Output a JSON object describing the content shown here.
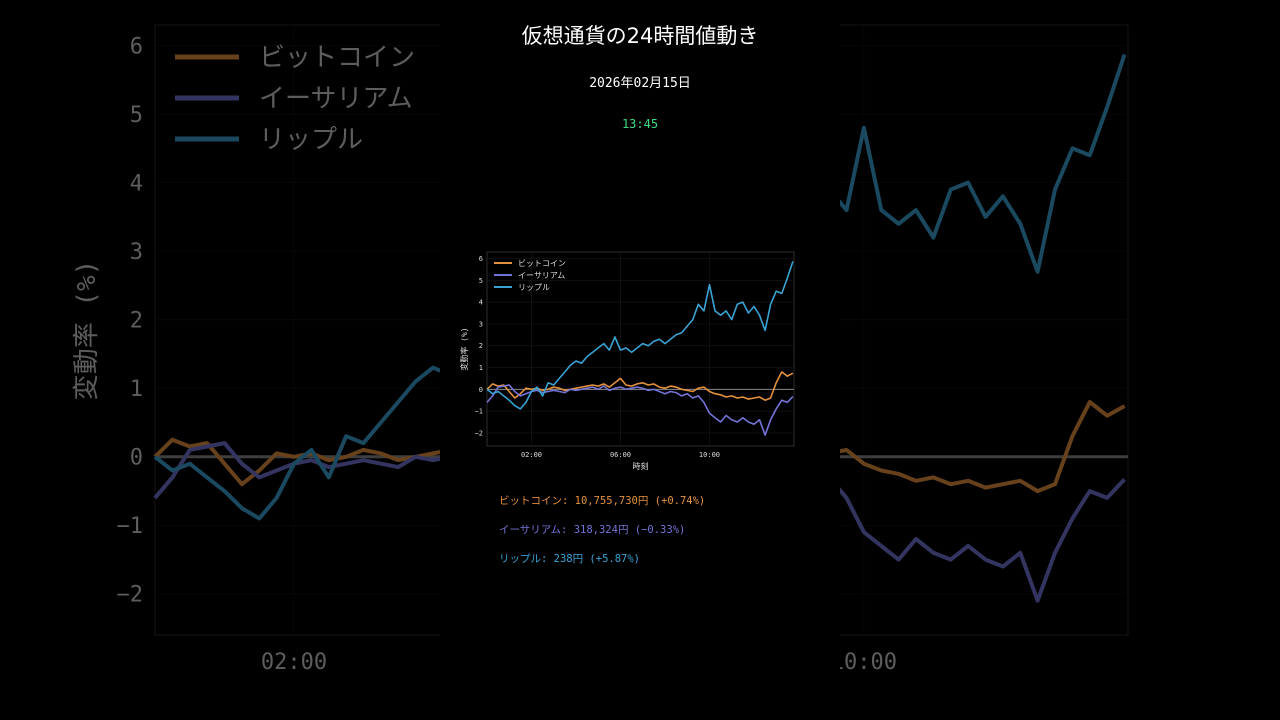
{
  "title": "仮想通貨の24時間値動き",
  "date": "2026年02月15日",
  "time": "13:45",
  "colors": {
    "background": "#000000",
    "time": "#3ddc84",
    "btc": "#e3913d",
    "eth": "#7474d8",
    "xrp": "#3aa3d4",
    "zero_line": "#8a8a8a"
  },
  "prices": [
    {
      "label": "ビットコイン: 10,755,730円 (+0.74%)",
      "color": "#e3913d"
    },
    {
      "label": "イーサリアム: 318,324円 (−0.33%)",
      "color": "#7474d8"
    },
    {
      "label": "リップル: 238円 (+5.87%)",
      "color": "#3aa3d4"
    }
  ],
  "chart_data": {
    "type": "line",
    "xlabel": "時刻",
    "ylabel": "変動率 (%)",
    "xlim": [
      0,
      13.8
    ],
    "ylim": [
      -2.6,
      6.3
    ],
    "x_ticks": [
      2,
      6,
      10
    ],
    "x_tick_labels": [
      "02:00",
      "06:00",
      "10:00"
    ],
    "y_ticks": [
      -2,
      -1,
      0,
      1,
      2,
      3,
      4,
      5,
      6
    ],
    "grid": true,
    "legend": "top-left",
    "x": [
      0,
      0.25,
      0.5,
      0.75,
      1,
      1.25,
      1.5,
      1.75,
      2,
      2.25,
      2.5,
      2.75,
      3,
      3.25,
      3.5,
      3.75,
      4,
      4.25,
      4.5,
      4.75,
      5,
      5.25,
      5.5,
      5.75,
      6,
      6.25,
      6.5,
      6.75,
      7,
      7.25,
      7.5,
      7.75,
      8,
      8.25,
      8.5,
      8.75,
      9,
      9.25,
      9.5,
      9.75,
      10,
      10.25,
      10.5,
      10.75,
      11,
      11.25,
      11.5,
      11.75,
      12,
      12.25,
      12.5,
      12.75,
      13,
      13.25,
      13.5,
      13.75
    ],
    "series": [
      {
        "name": "ビットコイン",
        "color": "#e3913d",
        "values": [
          0,
          0.25,
          0.15,
          0.2,
          -0.1,
          -0.4,
          -0.2,
          0.05,
          0,
          0.05,
          -0.05,
          0,
          0.1,
          0.05,
          -0.05,
          0,
          0.05,
          0.1,
          0.15,
          0.2,
          0.15,
          0.25,
          0.1,
          0.3,
          0.5,
          0.2,
          0.15,
          0.25,
          0.3,
          0.2,
          0.25,
          0.1,
          0.05,
          0.15,
          0.1,
          0,
          -0.05,
          -0.1,
          0.05,
          0.1,
          -0.1,
          -0.2,
          -0.25,
          -0.35,
          -0.3,
          -0.4,
          -0.35,
          -0.45,
          -0.4,
          -0.35,
          -0.5,
          -0.4,
          0.3,
          0.8,
          0.6,
          0.74
        ]
      },
      {
        "name": "イーサリアム",
        "color": "#7474d8",
        "values": [
          -0.6,
          -0.3,
          0.1,
          0.15,
          0.2,
          -0.1,
          -0.3,
          -0.2,
          -0.1,
          -0.05,
          -0.15,
          -0.1,
          -0.05,
          -0.1,
          -0.15,
          0,
          -0.05,
          0,
          0.05,
          0.1,
          0,
          0.15,
          -0.05,
          0.05,
          0.1,
          0,
          0.05,
          0.1,
          0.05,
          -0.05,
          0,
          -0.1,
          -0.2,
          -0.1,
          -0.15,
          -0.3,
          -0.2,
          -0.4,
          -0.3,
          -0.6,
          -1.1,
          -1.3,
          -1.5,
          -1.2,
          -1.4,
          -1.5,
          -1.3,
          -1.5,
          -1.6,
          -1.4,
          -2.1,
          -1.4,
          -0.9,
          -0.5,
          -0.6,
          -0.33
        ]
      },
      {
        "name": "リップル",
        "color": "#3aa3d4",
        "values": [
          0,
          -0.2,
          -0.1,
          -0.3,
          -0.5,
          -0.75,
          -0.9,
          -0.6,
          -0.1,
          0.1,
          -0.3,
          0.3,
          0.2,
          0.5,
          0.8,
          1.1,
          1.3,
          1.2,
          1.5,
          1.7,
          1.9,
          2.1,
          1.8,
          2.4,
          1.8,
          1.9,
          1.7,
          1.9,
          2.1,
          2.0,
          2.2,
          2.3,
          2.1,
          2.3,
          2.5,
          2.6,
          2.9,
          3.2,
          3.9,
          3.6,
          4.8,
          3.6,
          3.4,
          3.6,
          3.2,
          3.9,
          4.0,
          3.5,
          3.8,
          3.4,
          2.7,
          3.9,
          4.5,
          4.4,
          5.1,
          5.87
        ]
      }
    ]
  }
}
